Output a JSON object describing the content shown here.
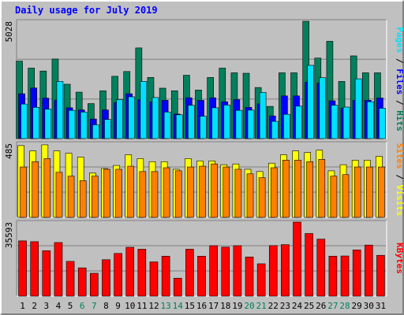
{
  "title": "Daily usage for July 2019",
  "colors": {
    "hits": "#00805c",
    "files": "#0000ff",
    "pages": "#00e0ff",
    "visits": "#ffff00",
    "sites": "#ff8000",
    "kbytes": "#ff0000",
    "weekday_tick": "#000000",
    "weekend_tick": "#00805c",
    "panel_bg": "#c0c0c0"
  },
  "chart_data": [
    {
      "type": "bar",
      "panel": "hits-files-pages",
      "categories": [
        "1",
        "2",
        "3",
        "4",
        "5",
        "6",
        "7",
        "8",
        "9",
        "10",
        "11",
        "12",
        "13",
        "14",
        "15",
        "16",
        "17",
        "18",
        "19",
        "20",
        "21",
        "22",
        "23",
        "24",
        "25",
        "26",
        "27",
        "28",
        "29",
        "30",
        "31"
      ],
      "weekend_days": [
        "6",
        "7",
        "13",
        "14",
        "20",
        "21",
        "27",
        "28"
      ],
      "ymax_label": "5028",
      "ylim": [
        0,
        5028
      ],
      "series": [
        {
          "name": "Hits",
          "color": "#00805c",
          "values": [
            3320,
            3020,
            2895,
            3410,
            2330,
            1990,
            1500,
            2050,
            2670,
            2875,
            3885,
            2620,
            2160,
            2050,
            2715,
            2080,
            2620,
            3020,
            2820,
            2800,
            2190,
            1380,
            2820,
            2820,
            5028,
            3450,
            4170,
            2450,
            3545,
            2820,
            2820
          ]
        },
        {
          "name": "Files",
          "color": "#0000ff",
          "values": [
            1920,
            2170,
            1735,
            1650,
            1320,
            1230,
            840,
            1230,
            1540,
            1920,
            1670,
            1570,
            1640,
            1050,
            1750,
            1640,
            1750,
            1580,
            1670,
            1340,
            1490,
            970,
            1830,
            1830,
            2420,
            2370,
            1620,
            1310,
            1640,
            1640,
            1740
          ]
        },
        {
          "name": "Pages",
          "color": "#00e0ff",
          "values": [
            1480,
            1340,
            1260,
            2450,
            1210,
            1140,
            590,
            820,
            1670,
            1790,
            2450,
            1760,
            1140,
            1020,
            1430,
            960,
            1320,
            1440,
            1210,
            1220,
            1980,
            740,
            1040,
            1390,
            3140,
            2610,
            1430,
            1350,
            2560,
            1580,
            1300
          ]
        }
      ]
    },
    {
      "type": "bar",
      "panel": "visits-sites",
      "categories": [
        "1",
        "2",
        "3",
        "4",
        "5",
        "6",
        "7",
        "8",
        "9",
        "10",
        "11",
        "12",
        "13",
        "14",
        "15",
        "16",
        "17",
        "18",
        "19",
        "20",
        "21",
        "22",
        "23",
        "24",
        "25",
        "26",
        "27",
        "28",
        "29",
        "30",
        "31"
      ],
      "ymax_label": "485",
      "ylim": [
        0,
        485
      ],
      "series": [
        {
          "name": "Visits",
          "color": "#ffff00",
          "values": [
            470,
            435,
            475,
            435,
            420,
            395,
            290,
            320,
            340,
            410,
            385,
            365,
            365,
            315,
            385,
            370,
            370,
            345,
            350,
            315,
            300,
            355,
            410,
            435,
            425,
            440,
            305,
            345,
            375,
            375,
            400
          ]
        },
        {
          "name": "Sites",
          "color": "#ff8000",
          "values": [
            330,
            365,
            385,
            295,
            270,
            240,
            270,
            315,
            315,
            335,
            300,
            300,
            325,
            305,
            330,
            335,
            350,
            330,
            315,
            285,
            260,
            325,
            375,
            375,
            365,
            380,
            270,
            280,
            330,
            330,
            330
          ]
        }
      ]
    },
    {
      "type": "bar",
      "panel": "kbytes",
      "categories": [
        "1",
        "2",
        "3",
        "4",
        "5",
        "6",
        "7",
        "8",
        "9",
        "10",
        "11",
        "12",
        "13",
        "14",
        "15",
        "16",
        "17",
        "18",
        "19",
        "20",
        "21",
        "22",
        "23",
        "24",
        "25",
        "26",
        "27",
        "28",
        "29",
        "30",
        "31"
      ],
      "ymax_label": "35593",
      "ylim": [
        0,
        35593
      ],
      "series": [
        {
          "name": "KBytes",
          "color": "#ff0000",
          "values": [
            26550,
            26170,
            21800,
            25770,
            16690,
            13580,
            10970,
            17500,
            20510,
            23480,
            22550,
            16440,
            19210,
            8620,
            22550,
            19200,
            24240,
            23560,
            24240,
            18800,
            15540,
            24290,
            24750,
            35593,
            30100,
            27390,
            19210,
            19300,
            22200,
            24550,
            19600
          ]
        }
      ]
    }
  ],
  "right_labels": {
    "panel1": [
      {
        "text": "Pages",
        "color": "#00e0ff"
      },
      {
        "text": " / ",
        "color": "#000000"
      },
      {
        "text": "Files",
        "color": "#0000ff"
      },
      {
        "text": " / ",
        "color": "#000000"
      },
      {
        "text": "Hits",
        "color": "#00805c"
      }
    ],
    "panel2": [
      {
        "text": "Sites",
        "color": "#ff8000"
      },
      {
        "text": " / ",
        "color": "#000000"
      },
      {
        "text": "Visits",
        "color": "#ffff00"
      }
    ],
    "panel3": [
      {
        "text": "KBytes",
        "color": "#ff0000"
      }
    ]
  }
}
